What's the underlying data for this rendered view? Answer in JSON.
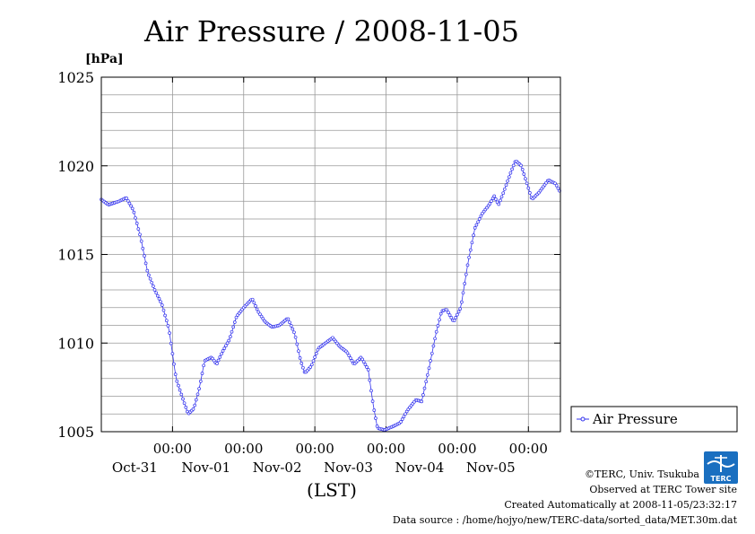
{
  "chart_data": {
    "type": "line",
    "title": "Air Pressure / 2008-11-05",
    "unit_label": "[hPa]",
    "xlabel": "(LST)",
    "ylim": [
      1005,
      1025
    ],
    "yticks": [
      "1005",
      "1010",
      "1015",
      "1020",
      "1025"
    ],
    "xlim_days": [
      0,
      6
    ],
    "xticks": [
      {
        "day": 1,
        "time": "00:00",
        "date": "Oct-31"
      },
      {
        "day": 2,
        "time": "00:00",
        "date": "Nov-01"
      },
      {
        "day": 3,
        "time": "00:00",
        "date": "Nov-02"
      },
      {
        "day": 4,
        "time": "00:00",
        "date": "Nov-03"
      },
      {
        "day": 5,
        "time": "00:00",
        "date": "Nov-04"
      },
      {
        "day": 6,
        "time": "00:00",
        "date": "Nov-05"
      }
    ],
    "grid": true,
    "legend": "right",
    "series": [
      {
        "name": "Air Pressure",
        "color": "#3333ee",
        "keyframes": [
          [
            0.0,
            1018.1
          ],
          [
            0.1,
            1017.8
          ],
          [
            0.25,
            1018.0
          ],
          [
            0.35,
            1018.2
          ],
          [
            0.45,
            1017.5
          ],
          [
            0.55,
            1016.0
          ],
          [
            0.65,
            1014.0
          ],
          [
            0.75,
            1013.0
          ],
          [
            0.85,
            1012.2
          ],
          [
            0.95,
            1010.8
          ],
          [
            1.05,
            1008.0
          ],
          [
            1.15,
            1006.8
          ],
          [
            1.22,
            1006.0
          ],
          [
            1.3,
            1006.3
          ],
          [
            1.38,
            1007.5
          ],
          [
            1.45,
            1009.0
          ],
          [
            1.55,
            1009.2
          ],
          [
            1.62,
            1008.8
          ],
          [
            1.7,
            1009.5
          ],
          [
            1.8,
            1010.2
          ],
          [
            1.9,
            1011.5
          ],
          [
            2.0,
            1012.0
          ],
          [
            2.12,
            1012.5
          ],
          [
            2.2,
            1011.8
          ],
          [
            2.3,
            1011.2
          ],
          [
            2.4,
            1010.9
          ],
          [
            2.5,
            1011.0
          ],
          [
            2.62,
            1011.4
          ],
          [
            2.72,
            1010.5
          ],
          [
            2.8,
            1009.0
          ],
          [
            2.86,
            1008.3
          ],
          [
            2.95,
            1008.7
          ],
          [
            3.05,
            1009.7
          ],
          [
            3.15,
            1010.0
          ],
          [
            3.25,
            1010.3
          ],
          [
            3.35,
            1009.8
          ],
          [
            3.45,
            1009.5
          ],
          [
            3.55,
            1008.8
          ],
          [
            3.65,
            1009.2
          ],
          [
            3.75,
            1008.5
          ],
          [
            3.82,
            1006.5
          ],
          [
            3.88,
            1005.2
          ],
          [
            3.98,
            1005.1
          ],
          [
            4.1,
            1005.3
          ],
          [
            4.2,
            1005.5
          ],
          [
            4.3,
            1006.2
          ],
          [
            4.42,
            1006.8
          ],
          [
            4.5,
            1006.7
          ],
          [
            4.6,
            1008.5
          ],
          [
            4.7,
            1010.5
          ],
          [
            4.78,
            1011.8
          ],
          [
            4.85,
            1011.9
          ],
          [
            4.95,
            1011.2
          ],
          [
            5.05,
            1012.0
          ],
          [
            5.15,
            1014.5
          ],
          [
            5.25,
            1016.5
          ],
          [
            5.35,
            1017.3
          ],
          [
            5.45,
            1017.8
          ],
          [
            5.52,
            1018.3
          ],
          [
            5.58,
            1017.8
          ],
          [
            5.65,
            1018.5
          ],
          [
            5.75,
            1019.6
          ],
          [
            5.82,
            1020.3
          ],
          [
            5.9,
            1020.0
          ],
          [
            5.98,
            1019.0
          ],
          [
            6.05,
            1018.1
          ],
          [
            6.15,
            1018.5
          ],
          [
            6.28,
            1019.2
          ],
          [
            6.38,
            1019.0
          ],
          [
            6.45,
            1018.5
          ]
        ]
      }
    ]
  },
  "footer": {
    "copyright": "©TERC, Univ. Tsukuba",
    "observed": "Observed at TERC Tower site",
    "created": "Created Automatically at 2008-11-05/23:32:17",
    "source": "Data source : /home/hojyo/new/TERC-data/sorted_data/MET.30m.dat",
    "logo_text": "TERC"
  }
}
